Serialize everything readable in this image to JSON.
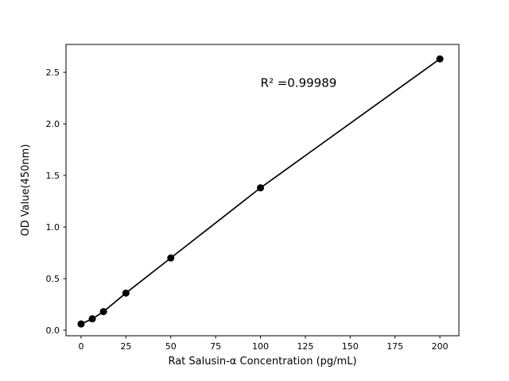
{
  "chart_data": {
    "type": "scatter",
    "title": "",
    "xlabel": "Rat Salusin-α Concentration (pg/mL)",
    "ylabel": "OD Value(450nm)",
    "x": [
      0,
      6.25,
      12.5,
      25,
      50,
      100,
      200
    ],
    "y": [
      0.06,
      0.11,
      0.18,
      0.36,
      0.7,
      1.38,
      2.63
    ],
    "line_through_points": true,
    "annotation": {
      "text": "R² =0.99989",
      "x": 100,
      "y": 2.36
    },
    "xticks": {
      "values": [
        0,
        25,
        50,
        75,
        100,
        125,
        150,
        175,
        200
      ],
      "labels": [
        "0",
        "25",
        "50",
        "75",
        "100",
        "125",
        "150",
        "175",
        "200"
      ]
    },
    "yticks": {
      "values": [
        0,
        0.5,
        1.0,
        1.5,
        2.0,
        2.5
      ],
      "labels": [
        "0.0",
        "0.5",
        "1.0",
        "1.5",
        "2.0",
        "2.5"
      ]
    },
    "xlim": [
      -8.4,
      210.6
    ],
    "ylim": [
      -0.054,
      2.77
    ],
    "grid": false,
    "legend": null,
    "marker_color": "#000000",
    "line_color": "#000000",
    "spine_color": "#000000",
    "background_color": "#ffffff"
  }
}
